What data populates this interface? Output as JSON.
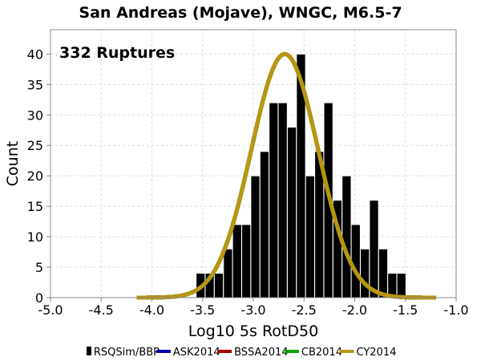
{
  "chart_data": {
    "type": "bar",
    "title": "San Andreas (Mojave), WNGC, M6.5-7",
    "annotation": "332 Ruptures",
    "xlabel": "Log10 5s RotD50",
    "ylabel": "Count",
    "xlim": [
      -5.0,
      -1.0
    ],
    "ylim": [
      0,
      44
    ],
    "grid": true,
    "legend_placement": "bottom",
    "x_ticks": [
      "-5.0",
      "-4.5",
      "-4.0",
      "-3.5",
      "-3.0",
      "-2.5",
      "-2.0",
      "-1.5",
      "-1.0"
    ],
    "x_tick_values": [
      -5.0,
      -4.5,
      -4.0,
      -3.5,
      -3.0,
      -2.5,
      -2.0,
      -1.5,
      -1.0
    ],
    "y_ticks": [
      "0",
      "5",
      "10",
      "15",
      "20",
      "25",
      "30",
      "35",
      "40"
    ],
    "y_tick_values": [
      0,
      5,
      10,
      15,
      20,
      25,
      30,
      35,
      40
    ],
    "histogram": {
      "name": "RSQSim/BBP",
      "color": "#000000",
      "bin_width": 0.089,
      "bins": [
        {
          "x": -3.52,
          "count": 4
        },
        {
          "x": -3.43,
          "count": 4
        },
        {
          "x": -3.34,
          "count": 4
        },
        {
          "x": -3.25,
          "count": 8
        },
        {
          "x": -3.16,
          "count": 12
        },
        {
          "x": -3.07,
          "count": 12
        },
        {
          "x": -2.98,
          "count": 20
        },
        {
          "x": -2.89,
          "count": 24
        },
        {
          "x": -2.8,
          "count": 32
        },
        {
          "x": -2.71,
          "count": 32
        },
        {
          "x": -2.62,
          "count": 28
        },
        {
          "x": -2.53,
          "count": 40
        },
        {
          "x": -2.44,
          "count": 20
        },
        {
          "x": -2.35,
          "count": 24
        },
        {
          "x": -2.26,
          "count": 32
        },
        {
          "x": -2.17,
          "count": 16
        },
        {
          "x": -2.08,
          "count": 20
        },
        {
          "x": -1.99,
          "count": 12
        },
        {
          "x": -1.9,
          "count": 8
        },
        {
          "x": -1.81,
          "count": 16
        },
        {
          "x": -1.72,
          "count": 8
        },
        {
          "x": -1.63,
          "count": 4
        },
        {
          "x": -1.54,
          "count": 4
        }
      ]
    },
    "curves": [
      {
        "name": "ASK2014",
        "color": "#0000aa",
        "mean": -2.69,
        "sigma": 0.33,
        "peak": 40,
        "x_range": [
          -4.15,
          -1.2
        ]
      },
      {
        "name": "BSSA2014",
        "color": "#aa0000",
        "mean": -2.69,
        "sigma": 0.33,
        "peak": 40,
        "x_range": [
          -4.15,
          -1.2
        ]
      },
      {
        "name": "CB2014",
        "color": "#00aa00",
        "mean": -2.69,
        "sigma": 0.33,
        "peak": 40,
        "x_range": [
          -4.15,
          -1.2
        ]
      },
      {
        "name": "CY2014",
        "color": "#b8960f",
        "mean": -2.69,
        "sigma": 0.33,
        "peak": 40,
        "x_range": [
          -4.15,
          -1.2
        ]
      }
    ],
    "legend": [
      {
        "name": "RSQSim/BBP",
        "color": "#000000",
        "symbol": "bar"
      },
      {
        "name": "ASK2014",
        "color": "#0000aa",
        "symbol": "line"
      },
      {
        "name": "BSSA2014",
        "color": "#aa0000",
        "symbol": "line"
      },
      {
        "name": "CB2014",
        "color": "#00aa00",
        "symbol": "line"
      },
      {
        "name": "CY2014",
        "color": "#b8960f",
        "symbol": "line"
      }
    ]
  }
}
